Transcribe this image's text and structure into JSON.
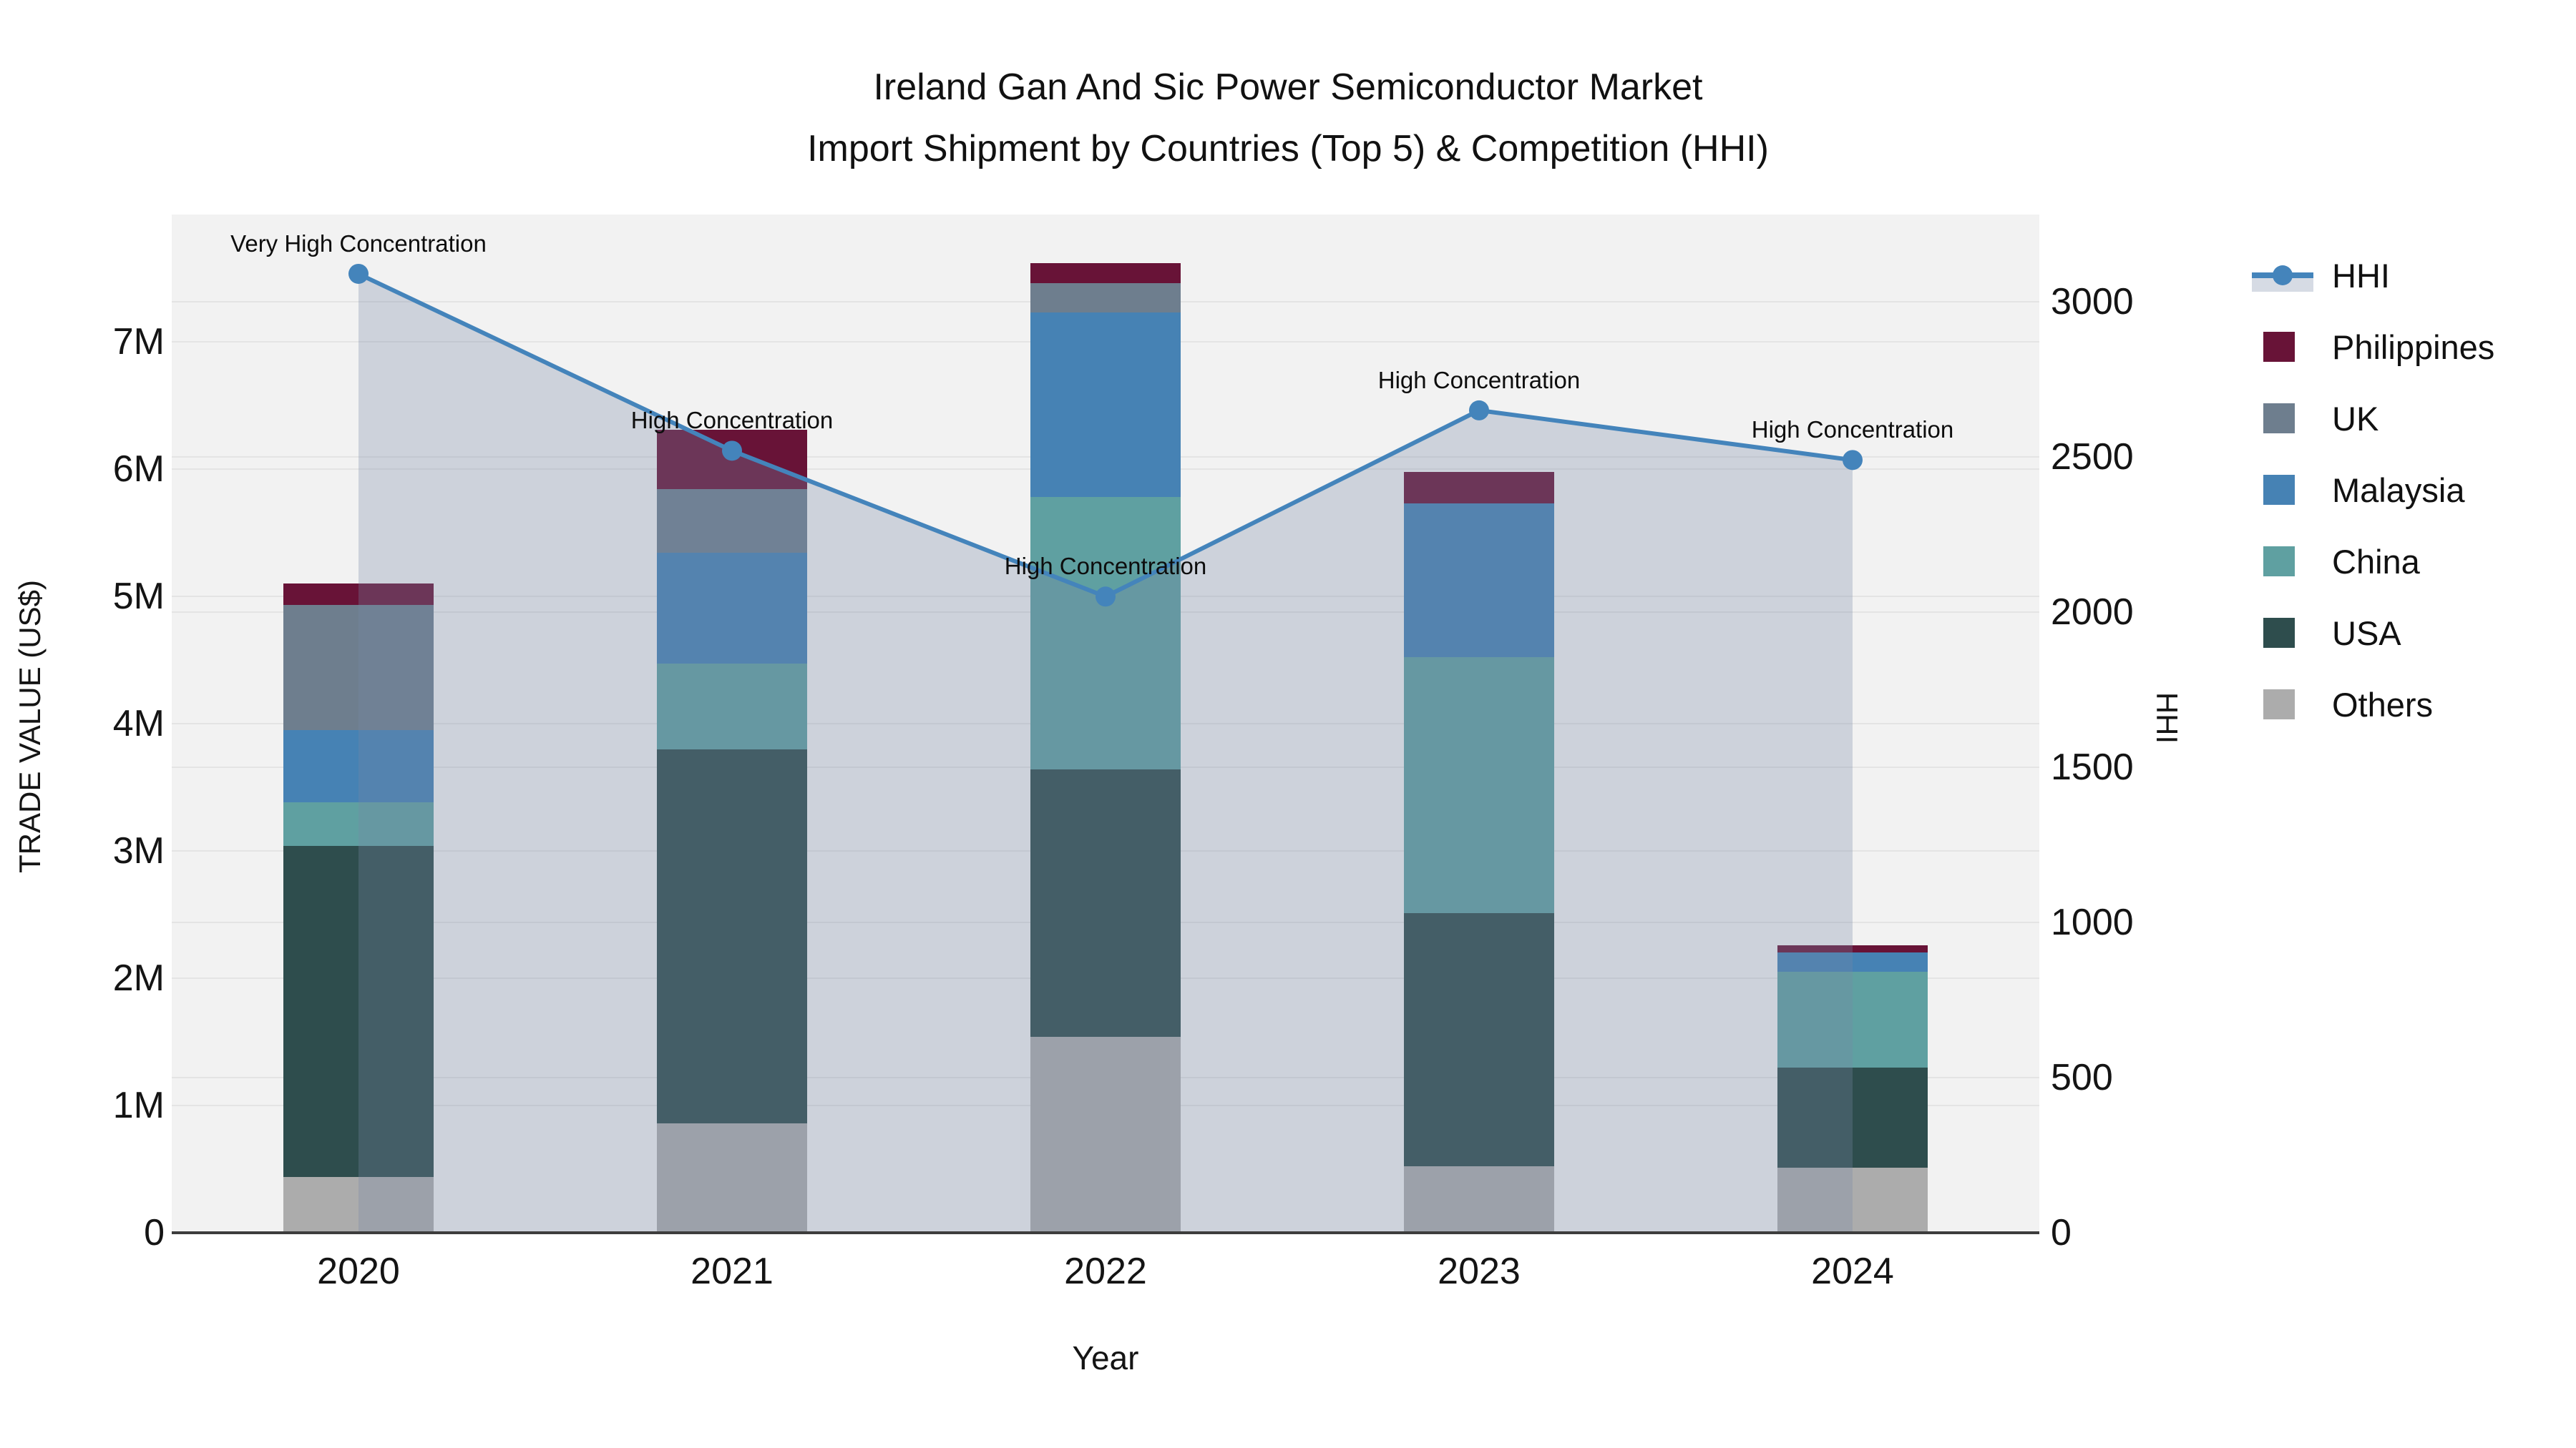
{
  "title": {
    "line1": "Ireland Gan And Sic Power Semiconductor Market",
    "line2": "Import Shipment by Countries (Top 5) & Competition (HHI)"
  },
  "axes": {
    "x": {
      "title": "Year",
      "tick_labels": [
        "2020",
        "2021",
        "2022",
        "2023",
        "2024"
      ]
    },
    "y_left": {
      "title": "TRADE VALUE (US$)",
      "ticks": [
        {
          "label": "0",
          "value": 0
        },
        {
          "label": "1M",
          "value": 1000000
        },
        {
          "label": "2M",
          "value": 2000000
        },
        {
          "label": "3M",
          "value": 3000000
        },
        {
          "label": "4M",
          "value": 4000000
        },
        {
          "label": "5M",
          "value": 5000000
        },
        {
          "label": "6M",
          "value": 6000000
        },
        {
          "label": "7M",
          "value": 7000000
        }
      ]
    },
    "y_right": {
      "title": "HHI",
      "ticks": [
        {
          "label": "0",
          "value": 0
        },
        {
          "label": "500",
          "value": 500
        },
        {
          "label": "1000",
          "value": 1000
        },
        {
          "label": "1500",
          "value": 1500
        },
        {
          "label": "2000",
          "value": 2000
        },
        {
          "label": "2500",
          "value": 2500
        },
        {
          "label": "3000",
          "value": 3000
        }
      ]
    }
  },
  "legend": {
    "items": [
      {
        "label": "HHI",
        "type": "line-area",
        "color": "#4484BB"
      },
      {
        "label": "Philippines",
        "type": "square",
        "color": "#681337"
      },
      {
        "label": "UK",
        "type": "square",
        "color": "#6E7E8E"
      },
      {
        "label": "Malaysia",
        "type": "square",
        "color": "#4682B4"
      },
      {
        "label": "China",
        "type": "square",
        "color": "#5FA0A1"
      },
      {
        "label": "USA",
        "type": "square",
        "color": "#2E4D4D"
      },
      {
        "label": "Others",
        "type": "square",
        "color": "#ACACAC"
      }
    ]
  },
  "chart_data": {
    "type": "bar+line",
    "bar_mode": "stacked",
    "categories": [
      "2020",
      "2021",
      "2022",
      "2023",
      "2024"
    ],
    "xlabel": "Year",
    "ylabel_left": "TRADE VALUE (US$)",
    "ylabel_right": "HHI",
    "ylim_left": [
      0,
      8000000
    ],
    "ylim_right": [
      0,
      3280
    ],
    "grid": true,
    "legend_position": "right",
    "series": [
      {
        "name": "Others",
        "color": "#ACACAC",
        "values": [
          440000,
          860000,
          1540000,
          520000,
          510000
        ]
      },
      {
        "name": "USA",
        "color": "#2E4D4D",
        "values": [
          2600000,
          2940000,
          2100000,
          1990000,
          790000
        ]
      },
      {
        "name": "China",
        "color": "#5FA0A1",
        "values": [
          340000,
          670000,
          2140000,
          2010000,
          750000
        ]
      },
      {
        "name": "Malaysia",
        "color": "#4682B4",
        "values": [
          570000,
          870000,
          1450000,
          1210000,
          150000
        ]
      },
      {
        "name": "UK",
        "color": "#6E7E8E",
        "values": [
          980000,
          500000,
          230000,
          0,
          0
        ]
      },
      {
        "name": "Philippines",
        "color": "#681337",
        "values": [
          170000,
          470000,
          160000,
          250000,
          60000
        ]
      }
    ],
    "bar_totals": [
      5100000,
      6310000,
      7620000,
      5980000,
      2260000
    ],
    "line_series": {
      "name": "HHI",
      "axis": "right",
      "color": "#4484BB",
      "fill_color": "rgba(120,135,165,0.30)",
      "values": [
        3090,
        2520,
        2050,
        2650,
        2490
      ]
    },
    "annotations": [
      {
        "category": "2020",
        "label": "Very High Concentration"
      },
      {
        "category": "2021",
        "label": "High Concentration"
      },
      {
        "category": "2022",
        "label": "High Concentration"
      },
      {
        "category": "2023",
        "label": "High Concentration"
      },
      {
        "category": "2024",
        "label": "High Concentration"
      }
    ]
  }
}
